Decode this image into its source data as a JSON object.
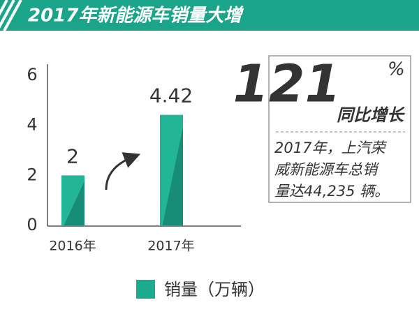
{
  "header": {
    "title": "2017年新能源车销量大增"
  },
  "chart_data": {
    "type": "bar",
    "categories": [
      "2016年",
      "2017年"
    ],
    "series": [
      {
        "name": "销量（万辆）",
        "color": "#1dab8f",
        "values": [
          2,
          4.42
        ]
      }
    ],
    "ylim": [
      0,
      6
    ],
    "yticks": [
      0,
      2,
      4,
      6
    ],
    "grid": false
  },
  "highlight": {
    "number": "121",
    "unit": "%",
    "caption": "同比增长",
    "lines": [
      "2017年，上汽荣",
      "威新能源车总销",
      "量达44,235 辆。"
    ]
  }
}
